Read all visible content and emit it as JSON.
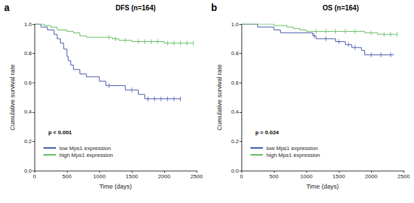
{
  "chart_data": [
    {
      "type": "line",
      "panel": "a",
      "title": "DFS (n=164)",
      "x_label": "Time (days)",
      "y_label": "Cumulative survival rate",
      "xlim": [
        0,
        2500
      ],
      "xticks": [
        0,
        500,
        1000,
        1500,
        2000,
        2500
      ],
      "ylim": [
        0,
        1
      ],
      "yticks": [
        {
          "value": 0,
          "label": "0.0"
        },
        0.2,
        0.4,
        0.6,
        0.8,
        {
          "value": 1,
          "label": "1.0"
        }
      ],
      "grid": false,
      "legend": "lower left",
      "line_style": "step",
      "annotation": "p < 0.001",
      "series": [
        {
          "name": "low Mps1 expression",
          "color": "#3f51a8",
          "x": [
            0,
            100,
            200,
            300,
            350,
            400,
            450,
            500,
            520,
            560,
            600,
            700,
            800,
            1000,
            1100,
            1400,
            1600,
            1700,
            2250
          ],
          "values": [
            1,
            0.98,
            0.96,
            0.93,
            0.9,
            0.87,
            0.83,
            0.78,
            0.75,
            0.72,
            0.69,
            0.66,
            0.64,
            0.61,
            0.58,
            0.55,
            0.52,
            0.49,
            0.49
          ],
          "censored": [
            [
              1150,
              0.58
            ],
            [
              1500,
              0.55
            ],
            [
              1750,
              0.49
            ],
            [
              1850,
              0.49
            ],
            [
              1950,
              0.49
            ],
            [
              2050,
              0.49
            ],
            [
              2150,
              0.49
            ],
            [
              2250,
              0.49
            ]
          ]
        },
        {
          "name": "high Mps1 expression",
          "color": "#5cb85c",
          "x": [
            0,
            150,
            250,
            350,
            500,
            600,
            700,
            800,
            1200,
            1300,
            1500,
            2000,
            2450
          ],
          "values": [
            1,
            0.99,
            0.98,
            0.96,
            0.95,
            0.94,
            0.92,
            0.91,
            0.9,
            0.89,
            0.88,
            0.87,
            0.87
          ],
          "censored": [
            [
              1150,
              0.91
            ],
            [
              1250,
              0.9
            ],
            [
              1400,
              0.89
            ],
            [
              1600,
              0.88
            ],
            [
              1700,
              0.88
            ],
            [
              1800,
              0.88
            ],
            [
              1900,
              0.88
            ],
            [
              2050,
              0.87
            ],
            [
              2150,
              0.87
            ],
            [
              2250,
              0.87
            ],
            [
              2350,
              0.87
            ],
            [
              2450,
              0.87
            ]
          ]
        }
      ]
    },
    {
      "type": "line",
      "panel": "b",
      "title": "OS (n=164)",
      "x_label": "Time (days)",
      "y_label": "Cumulative survival rate",
      "xlim": [
        0,
        2500
      ],
      "xticks": [
        0,
        500,
        1000,
        1500,
        2000,
        2500
      ],
      "ylim": [
        0,
        1
      ],
      "yticks": [
        {
          "value": 0,
          "label": "0.0"
        },
        0.2,
        0.4,
        0.6,
        0.8,
        {
          "value": 1,
          "label": "1.0"
        }
      ],
      "grid": false,
      "legend": "lower left",
      "line_style": "step",
      "annotation": "p = 0.024",
      "series": [
        {
          "name": "low Mps1 expression",
          "color": "#3f51a8",
          "x": [
            0,
            250,
            500,
            600,
            1100,
            1150,
            1450,
            1600,
            1700,
            1850,
            1900,
            2350
          ],
          "values": [
            1,
            0.98,
            0.96,
            0.94,
            0.92,
            0.9,
            0.88,
            0.86,
            0.84,
            0.82,
            0.79,
            0.79
          ],
          "censored": [
            [
              1120,
              0.92
            ],
            [
              1300,
              0.9
            ],
            [
              1500,
              0.88
            ],
            [
              1650,
              0.86
            ],
            [
              1750,
              0.84
            ],
            [
              2000,
              0.79
            ],
            [
              2150,
              0.79
            ],
            [
              2300,
              0.79
            ]
          ]
        },
        {
          "name": "high Mps1 expression",
          "color": "#5cb85c",
          "x": [
            0,
            500,
            700,
            800,
            900,
            1000,
            1900,
            2100,
            2400
          ],
          "values": [
            1,
            0.99,
            0.98,
            0.97,
            0.96,
            0.95,
            0.94,
            0.93,
            0.93
          ],
          "censored": [
            [
              1150,
              0.95
            ],
            [
              1300,
              0.95
            ],
            [
              1450,
              0.95
            ],
            [
              1600,
              0.95
            ],
            [
              1750,
              0.95
            ],
            [
              2000,
              0.94
            ],
            [
              2200,
              0.93
            ],
            [
              2300,
              0.93
            ],
            [
              2400,
              0.93
            ]
          ]
        }
      ]
    }
  ]
}
